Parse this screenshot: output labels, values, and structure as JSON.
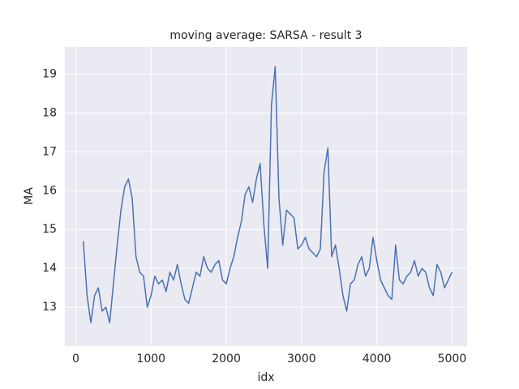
{
  "chart_data": {
    "type": "line",
    "title": "moving average: SARSA - result 3",
    "x_label": "idx",
    "y_label": "MA",
    "x": [
      100,
      150,
      200,
      250,
      300,
      350,
      400,
      450,
      500,
      550,
      600,
      650,
      700,
      750,
      800,
      850,
      900,
      950,
      1000,
      1050,
      1100,
      1150,
      1200,
      1250,
      1300,
      1350,
      1400,
      1450,
      1500,
      1550,
      1600,
      1650,
      1700,
      1750,
      1800,
      1850,
      1900,
      1950,
      2000,
      2050,
      2100,
      2150,
      2200,
      2250,
      2300,
      2350,
      2400,
      2450,
      2500,
      2550,
      2600,
      2650,
      2700,
      2750,
      2800,
      2850,
      2900,
      2950,
      3000,
      3050,
      3100,
      3150,
      3200,
      3250,
      3300,
      3350,
      3400,
      3450,
      3500,
      3550,
      3600,
      3650,
      3700,
      3750,
      3800,
      3850,
      3900,
      3950,
      4000,
      4050,
      4100,
      4150,
      4200,
      4250,
      4300,
      4350,
      4400,
      4450,
      4500,
      4550,
      4600,
      4650,
      4700,
      4750,
      4800,
      4850,
      4900,
      4950,
      4999
    ],
    "series": [
      {
        "color": "#4c72b0",
        "values": [
          14.7,
          13.3,
          12.6,
          13.3,
          13.5,
          12.9,
          13.0,
          12.6,
          13.6,
          14.6,
          15.5,
          16.1,
          16.3,
          15.8,
          14.3,
          13.9,
          13.8,
          13.0,
          13.3,
          13.8,
          13.6,
          13.7,
          13.4,
          13.9,
          13.7,
          14.1,
          13.6,
          13.2,
          13.1,
          13.5,
          13.9,
          13.8,
          14.3,
          14.0,
          13.9,
          14.1,
          14.2,
          13.7,
          13.6,
          14.0,
          14.3,
          14.8,
          15.2,
          15.9,
          16.1,
          15.7,
          16.3,
          16.7,
          15.1,
          14.0,
          18.2,
          19.2,
          15.8,
          14.6,
          15.5,
          15.4,
          15.3,
          14.5,
          14.6,
          14.8,
          14.5,
          14.4,
          14.3,
          14.5,
          16.5,
          17.1,
          14.3,
          14.6,
          14.0,
          13.3,
          12.9,
          13.6,
          13.7,
          14.1,
          14.3,
          13.8,
          14.0,
          14.8,
          14.2,
          13.7,
          13.5,
          13.3,
          13.2,
          14.6,
          13.7,
          13.6,
          13.8,
          13.9,
          14.2,
          13.8,
          14.0,
          13.9,
          13.5,
          13.3,
          14.1,
          13.9,
          13.5,
          13.7,
          13.9
        ]
      }
    ],
    "xlim": [
      -145,
      5200
    ],
    "ylim": [
      12.0,
      19.7
    ],
    "xticks": [
      0,
      1000,
      2000,
      3000,
      4000,
      5000
    ],
    "yticks": [
      13,
      14,
      15,
      16,
      17,
      18,
      19
    ],
    "grid": true
  }
}
